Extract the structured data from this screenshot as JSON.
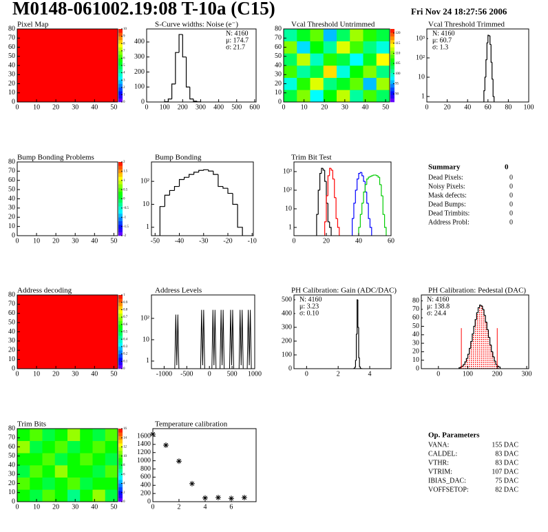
{
  "header": {
    "title": "M0148-061002.19:08 T-10a (C15)",
    "date": "Fri Nov 24 18:27:56 2006"
  },
  "chart_data": [
    {
      "type": "heatmap",
      "title": "Pixel Map",
      "xlim": [
        0,
        52
      ],
      "ylim": [
        0,
        80
      ],
      "xticks": [
        0,
        10,
        20,
        30,
        40,
        50
      ],
      "yticks": [
        0,
        10,
        20,
        30,
        40,
        50,
        60,
        70,
        80
      ],
      "zlim": [
        0,
        10
      ],
      "zticks": [
        0,
        1,
        2,
        3,
        4,
        5,
        6,
        7,
        8,
        9,
        10
      ],
      "values": [
        [
          10
        ]
      ]
    },
    {
      "type": "histogram",
      "title": "S-Curve widths: Noise (e⁻)",
      "xlim": [
        0,
        608
      ],
      "ylim": [
        0,
        487
      ],
      "xticks": [
        0,
        100,
        200,
        300,
        400,
        500,
        600
      ],
      "yticks": [
        0,
        100,
        200,
        300,
        400
      ],
      "color": "#000000",
      "bins": [
        100,
        120,
        140,
        160,
        180,
        200,
        220,
        240,
        260,
        280,
        300
      ],
      "values": [
        2,
        20,
        120,
        330,
        450,
        300,
        100,
        20,
        5,
        1
      ],
      "stats": [
        "N: 4160",
        "μ: 174.7",
        "σ: 21.7"
      ],
      "stats_corner": "upper right"
    },
    {
      "type": "heatmap",
      "title": "Vcal Threshold Untrimmed",
      "xlim": [
        0,
        52
      ],
      "ylim": [
        0,
        80
      ],
      "xticks": [
        0,
        10,
        20,
        30,
        40,
        50
      ],
      "yticks": [
        0,
        10,
        20,
        30,
        40,
        50,
        60,
        70,
        80
      ],
      "zlim": [
        86,
        122
      ],
      "zticks": [
        90,
        95,
        100,
        105,
        110,
        115,
        120
      ],
      "values": [
        [
          104,
          110,
          98,
          106,
          112,
          101,
          108,
          103
        ],
        [
          99,
          107,
          113,
          102,
          105,
          109,
          96,
          111
        ],
        [
          108,
          101,
          104,
          115,
          99,
          106,
          110,
          102
        ],
        [
          103,
          112,
          100,
          107,
          104,
          98,
          105,
          114
        ],
        [
          110,
          97,
          106,
          101,
          113,
          108,
          102,
          99
        ],
        [
          101,
          105,
          109,
          96,
          103,
          111,
          107,
          104
        ]
      ]
    },
    {
      "type": "histogram",
      "title": "Vcal Threshold Trimmed",
      "log_y": true,
      "xlim": [
        0,
        100
      ],
      "ylim": [
        0.52,
        3160
      ],
      "xticks": [
        0,
        20,
        40,
        60,
        80,
        100
      ],
      "yticks": [
        1,
        10,
        {
          "value": 100,
          "label": "10²"
        },
        {
          "value": 1000,
          "label": "10³"
        }
      ],
      "color": "#000000",
      "bins": [
        56,
        57,
        58,
        59,
        60,
        61,
        62,
        63,
        64,
        65,
        66
      ],
      "values": [
        2,
        10,
        80,
        600,
        1500,
        1400,
        500,
        60,
        8,
        1
      ],
      "stats": [
        "N: 4160",
        "μ: 60.7",
        "σ:  1.3"
      ],
      "stats_corner": "upper left"
    },
    {
      "type": "heatmap",
      "title": "Bump Bonding Problems",
      "xlim": [
        0,
        52
      ],
      "ylim": [
        0,
        80
      ],
      "xticks": [
        0,
        10,
        20,
        30,
        40,
        50
      ],
      "yticks": [
        0,
        10,
        20,
        30,
        40,
        50,
        60,
        70,
        80
      ],
      "zlim": [
        -2,
        2
      ],
      "zticks": [
        -2,
        -1.5,
        -1,
        -0.5,
        0,
        0.5,
        1,
        1.5,
        2
      ],
      "values": []
    },
    {
      "type": "histogram",
      "title": "Bump Bonding",
      "log_y": true,
      "xlim": [
        -51.5,
        -9.5
      ],
      "ylim": [
        0.43,
        700
      ],
      "xticks": [
        -50,
        -40,
        -30,
        -20,
        -10
      ],
      "yticks": [
        1,
        10,
        {
          "value": 100,
          "label": "10²"
        }
      ],
      "color": "#000000",
      "bins": [
        -48,
        -46,
        -44,
        -42,
        -40,
        -38,
        -36,
        -34,
        -32,
        -30,
        -28,
        -26,
        -24,
        -22,
        -20,
        -18,
        -16,
        -14
      ],
      "values": [
        8,
        25,
        40,
        60,
        120,
        150,
        200,
        250,
        300,
        320,
        280,
        200,
        60,
        50,
        30,
        10,
        1
      ]
    },
    {
      "type": "histogram",
      "title": "Trim Bit Test",
      "log_y": true,
      "xlim": [
        0,
        60
      ],
      "ylim": [
        0.36,
        3300
      ],
      "xticks": [
        0,
        20,
        40,
        60
      ],
      "yticks": [
        1,
        10,
        {
          "value": 100,
          "label": "10²"
        },
        {
          "value": 1000,
          "label": "10³"
        }
      ],
      "series": [
        {
          "color": "#000000",
          "bins": [
            14,
            15,
            16,
            17,
            18,
            19,
            20,
            21,
            22,
            23
          ],
          "values": [
            5,
            100,
            800,
            1500,
            1200,
            300,
            20,
            2,
            1
          ]
        },
        {
          "color": "#ff0000",
          "bins": [
            19,
            20,
            21,
            22,
            23,
            24,
            25,
            26,
            27,
            28
          ],
          "values": [
            2,
            50,
            600,
            1500,
            1200,
            400,
            40,
            3,
            1
          ]
        },
        {
          "color": "#0000ff",
          "bins": [
            36,
            37,
            38,
            39,
            40,
            41,
            42,
            43,
            44,
            45,
            46,
            47,
            48
          ],
          "values": [
            3,
            20,
            100,
            400,
            800,
            900,
            600,
            300,
            80,
            20,
            3,
            1
          ]
        },
        {
          "color": "#00cc00",
          "bins": [
            40,
            41,
            42,
            43,
            44,
            45,
            46,
            47,
            48,
            49,
            50,
            51,
            52,
            53,
            54,
            55,
            56,
            57
          ],
          "values": [
            1,
            5,
            20,
            80,
            200,
            400,
            500,
            550,
            600,
            650,
            650,
            600,
            500,
            200,
            50,
            5,
            1
          ]
        }
      ]
    },
    {
      "type": "heatmap",
      "title": "Address decoding",
      "xlim": [
        0,
        52
      ],
      "ylim": [
        0,
        80
      ],
      "xticks": [
        0,
        10,
        20,
        30,
        40,
        50
      ],
      "yticks": [
        0,
        10,
        20,
        30,
        40,
        50,
        60,
        70,
        80
      ],
      "zlim": [
        0,
        1
      ],
      "zticks": [
        0,
        0.1,
        0.2,
        0.3,
        0.4,
        0.5,
        0.6,
        0.7,
        0.8,
        0.9,
        1
      ],
      "values": [
        [
          1
        ]
      ]
    },
    {
      "type": "spikes",
      "title": "Address Levels",
      "log_y": true,
      "xlim": [
        -1280,
        1000
      ],
      "ylim": [
        0.44,
        1250
      ],
      "xticks": [
        -1000,
        -500,
        0,
        500,
        1000
      ],
      "yticks": [
        1,
        10,
        {
          "value": 100,
          "label": "10²"
        }
      ],
      "color": "#000000",
      "x": [
        -720,
        -150,
        100,
        280,
        490,
        700,
        880
      ],
      "values": [
        150,
        250,
        250,
        250,
        250,
        250,
        250
      ]
    },
    {
      "type": "histogram",
      "title": "PH Calibration: Gain (ADC/DAC)",
      "xlim": [
        -0.8,
        5.35
      ],
      "ylim": [
        0,
        535
      ],
      "xticks": [
        0,
        2,
        4
      ],
      "yticks": [
        0,
        100,
        200,
        300,
        400,
        500
      ],
      "color": "#000000",
      "bins": [
        3.0,
        3.05,
        3.1,
        3.15,
        3.2,
        3.25,
        3.3,
        3.35,
        3.4,
        3.45,
        3.5
      ],
      "values": [
        2,
        10,
        60,
        250,
        500,
        300,
        80,
        15,
        3,
        1
      ],
      "stats": [
        "N: 4160",
        "μ: 3.23",
        "σ: 0.10"
      ],
      "stats_corner": "upper left"
    },
    {
      "type": "histogram",
      "title": "PH Calibration: Pedestal (DAC)",
      "xlim": [
        -58,
        307
      ],
      "ylim": [
        0,
        87
      ],
      "xticks": [
        0,
        100,
        200,
        300
      ],
      "yticks": [
        0,
        10,
        20,
        30,
        40,
        50,
        60,
        70,
        80
      ],
      "color": "#000000",
      "fill_color": "#ff0000",
      "marker_lines": [
        78,
        200
      ],
      "marker_color": "#ff0000",
      "bins": [
        70,
        75,
        80,
        85,
        90,
        95,
        100,
        105,
        110,
        115,
        120,
        125,
        130,
        135,
        140,
        145,
        150,
        155,
        160,
        165,
        170,
        175,
        180,
        185,
        190,
        195,
        200,
        205,
        210
      ],
      "values": [
        1,
        2,
        3,
        5,
        8,
        12,
        17,
        24,
        32,
        41,
        50,
        58,
        66,
        72,
        75,
        74,
        70,
        63,
        55,
        46,
        37,
        28,
        20,
        14,
        9,
        5,
        3,
        2
      ],
      "stats": [
        "N: 4160",
        "μ: 138.8",
        "σ: 24.4"
      ],
      "stats_colors": [
        "#000000",
        "#ff0000",
        "#ff0000"
      ],
      "stats_corner": "upper left"
    },
    {
      "type": "heatmap",
      "title": "Trim Bits",
      "xlim": [
        0,
        52
      ],
      "ylim": [
        0,
        80
      ],
      "xticks": [
        0,
        10,
        20,
        30,
        40,
        50
      ],
      "yticks": [
        0,
        10,
        20,
        30,
        40,
        50,
        60,
        70,
        80
      ],
      "zlim": [
        0,
        16
      ],
      "zticks": [
        0,
        2,
        4,
        6,
        8,
        10,
        12,
        14,
        16
      ],
      "values": [
        [
          9,
          8,
          10,
          9,
          7,
          9,
          11,
          8
        ],
        [
          10,
          9,
          8,
          9,
          10,
          8,
          9,
          9
        ],
        [
          8,
          10,
          9,
          11,
          9,
          9,
          8,
          10
        ],
        [
          9,
          9,
          10,
          8,
          9,
          10,
          9,
          8
        ],
        [
          11,
          8,
          9,
          10,
          8,
          9,
          10,
          9
        ],
        [
          9,
          10,
          8,
          9,
          11,
          9,
          8,
          10
        ]
      ]
    },
    {
      "type": "scatter",
      "title": "Temperature calibration",
      "xlim": [
        0,
        7.9
      ],
      "ylim": [
        0,
        1785
      ],
      "xticks": [
        0,
        2,
        4,
        6
      ],
      "yticks": [
        0,
        200,
        400,
        600,
        800,
        1000,
        1200,
        1400,
        1600
      ],
      "color": "#000000",
      "x": [
        0,
        1,
        2,
        3,
        4,
        5,
        6,
        7
      ],
      "values": [
        1650,
        1380,
        990,
        440,
        90,
        100,
        80,
        100
      ]
    }
  ],
  "summary": {
    "title": "Summary",
    "total": 0,
    "rows": [
      [
        "Dead Pixels:",
        0
      ],
      [
        "Noisy Pixels:",
        0
      ],
      [
        "Mask defects:",
        0
      ],
      [
        "Dead Bumps:",
        0
      ],
      [
        "Dead Trimbits:",
        0
      ],
      [
        "Address Probl:",
        0
      ]
    ]
  },
  "op_parameters": {
    "title": "Op. Parameters",
    "rows": [
      [
        "VANA:",
        "155 DAC"
      ],
      [
        "CALDEL:",
        "83 DAC"
      ],
      [
        "VTHR:",
        "83 DAC"
      ],
      [
        "VTRIM:",
        "107 DAC"
      ],
      [
        "IBIAS_DAC:",
        "75 DAC"
      ],
      [
        "VOFFSETOP:",
        "82 DAC"
      ]
    ]
  }
}
